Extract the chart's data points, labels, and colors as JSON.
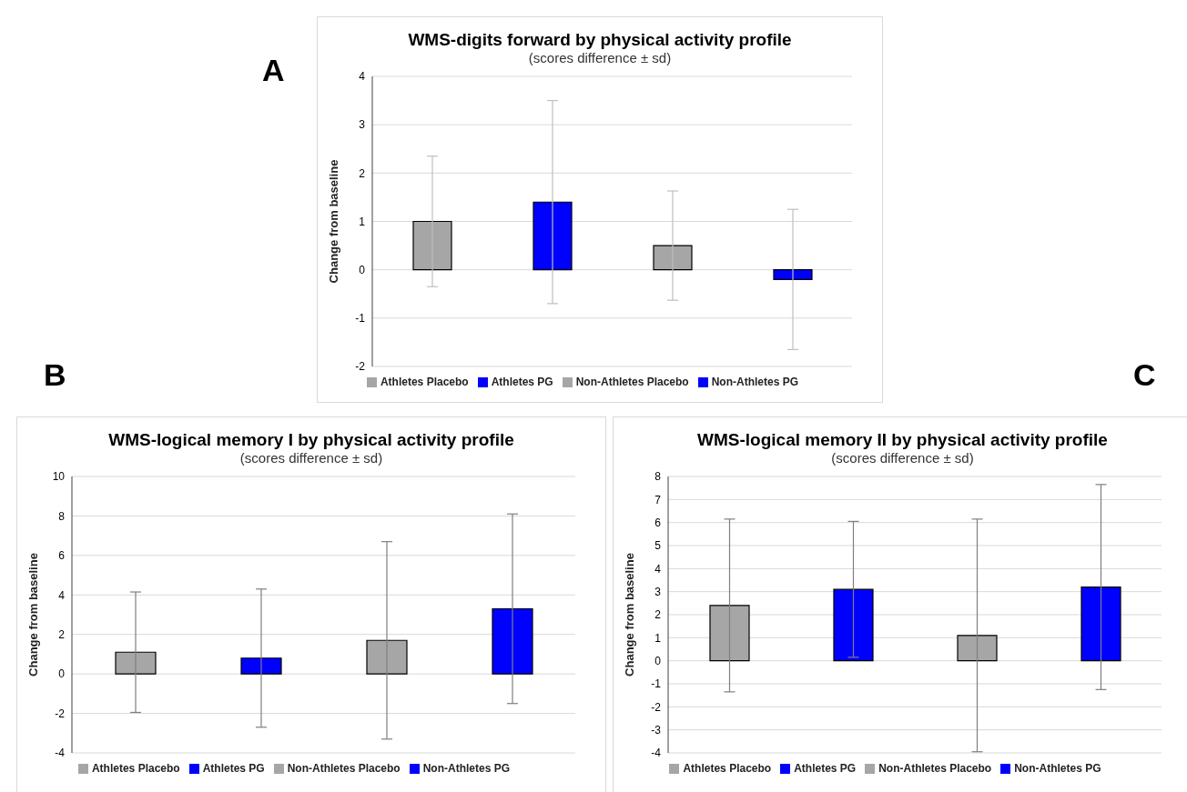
{
  "chart_data": [
    {
      "type": "bar",
      "title": "WMS-digits forward by physical activity profile",
      "subtitle": "(scores difference ± sd)",
      "ylabel": "Change from baseline",
      "annotations": [
        "A"
      ],
      "categories": [
        null
      ],
      "series": [
        {
          "name": "Athletes Placebo",
          "color": "#a6a6a6",
          "values": [
            1.0
          ],
          "errors": [
            1.35
          ]
        },
        {
          "name": "Athletes PG",
          "color": "#0000ff",
          "values": [
            1.4
          ],
          "errors": [
            2.1
          ]
        },
        {
          "name": "Non-Athletes Placebo",
          "color": "#a6a6a6",
          "values": [
            0.5
          ],
          "errors": [
            1.13
          ]
        },
        {
          "name": "Non-Athletes PG",
          "color": "#0000ff",
          "values": [
            -0.2
          ],
          "errors": [
            1.45
          ]
        }
      ],
      "ylim": [
        -2,
        4
      ],
      "yticks": [
        -2,
        -1,
        0,
        1,
        2,
        3,
        4
      ],
      "grid": "y",
      "legend": "bottom"
    },
    {
      "type": "bar",
      "title": "WMS-logical memory I by physical activity profile",
      "subtitle": "(scores difference ± sd)",
      "ylabel": "Change from baseline",
      "annotations": [
        "B"
      ],
      "categories": [
        null
      ],
      "series": [
        {
          "name": "Athletes Placebo",
          "color": "#a6a6a6",
          "values": [
            1.1
          ],
          "errors": [
            3.05
          ]
        },
        {
          "name": "Athletes PG",
          "color": "#0000ff",
          "values": [
            0.8
          ],
          "errors": [
            3.5
          ]
        },
        {
          "name": "Non-Athletes Placebo",
          "color": "#a6a6a6",
          "values": [
            1.7
          ],
          "errors": [
            5.0
          ]
        },
        {
          "name": "Non-Athletes PG",
          "color": "#0000ff",
          "values": [
            3.3
          ],
          "errors": [
            4.8
          ]
        }
      ],
      "ylim": [
        -4,
        10
      ],
      "yticks": [
        -4,
        -2,
        0,
        2,
        4,
        6,
        8,
        10
      ],
      "grid": "y",
      "legend": "bottom"
    },
    {
      "type": "bar",
      "title": "WMS-logical memory II by physical activity profile",
      "subtitle": "(scores difference ± sd)",
      "ylabel": "Change from baseline",
      "annotations": [
        "C"
      ],
      "categories": [
        null
      ],
      "series": [
        {
          "name": "Athletes Placebo",
          "color": "#a6a6a6",
          "values": [
            2.4
          ],
          "errors": [
            3.75
          ]
        },
        {
          "name": "Athletes PG",
          "color": "#0000ff",
          "values": [
            3.1
          ],
          "errors": [
            2.95
          ]
        },
        {
          "name": "Non-Athletes Placebo",
          "color": "#a6a6a6",
          "values": [
            1.1
          ],
          "errors": [
            5.05
          ]
        },
        {
          "name": "Non-Athletes PG",
          "color": "#0000ff",
          "values": [
            3.2
          ],
          "errors": [
            4.45
          ]
        }
      ],
      "ylim": [
        -4,
        8
      ],
      "yticks": [
        -4,
        -3,
        -2,
        -1,
        0,
        1,
        2,
        3,
        4,
        5,
        6,
        7,
        8
      ],
      "grid": "y",
      "legend": "bottom"
    }
  ]
}
